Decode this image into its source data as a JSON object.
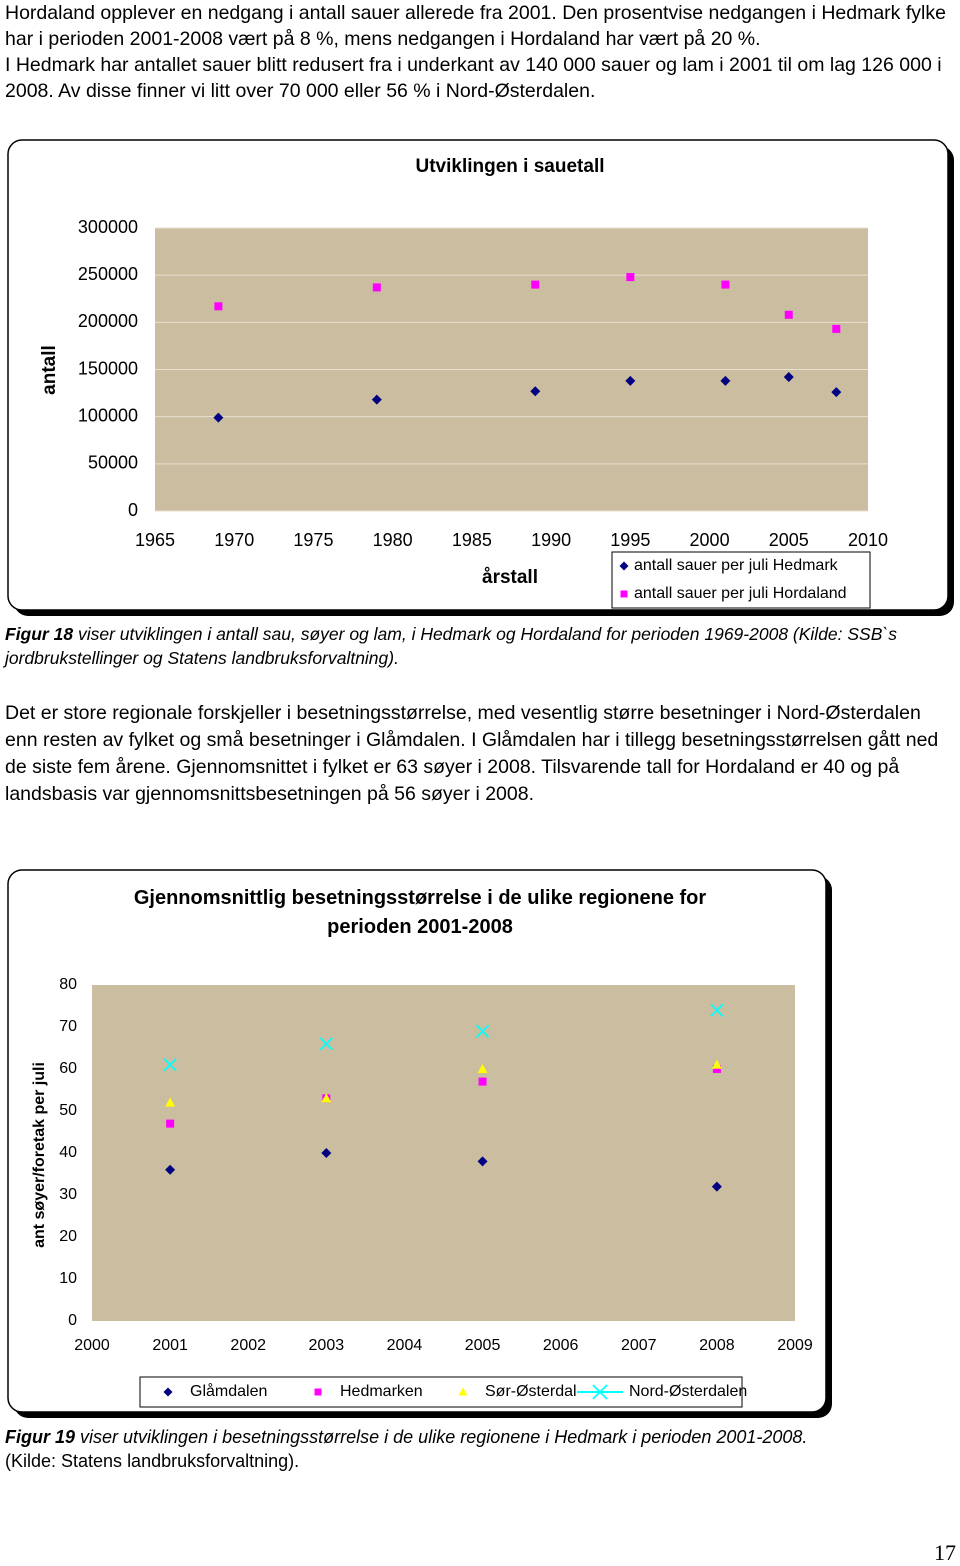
{
  "paragraphs": [
    "Hordaland opplever en nedgang i antall sauer allerede fra 2001. Den prosentvise nedgangen i Hedmark fylke har i perioden 2001-2008 vært på 8 %, mens nedgangen i Hordaland har vært på 20 %.",
    "I Hedmark har antallet sauer blitt redusert fra i underkant av 140 000 sauer og lam i 2001 til om lag 126 000 i 2008. Av disse finner vi litt over 70 000 eller 56 % i Nord-Østerdalen.",
    "Det er store regionale forskjeller i besetningsstørrelse, med vesentlig større besetninger i Nord-Østerdalen enn resten av fylket og små besetninger i Glåmdalen. I Glåmdalen har i tillegg besetningsstørrelsen gått ned de siste fem årene. Gjennomsnittet i fylket er 63 søyer i 2008. Tilsvarende tall for Hordaland er 40 og på landsbasis var gjennomsnittsbesetningen på 56 søyer i 2008."
  ],
  "captions": [
    {
      "label": "Figur 18",
      "text": "viser utviklingen i antall sau, søyer og lam, i Hedmark og Hordaland for perioden 1969-2008 (Kilde: SSB`s jordbrukstellinger og Statens landbruksforvaltning)."
    },
    {
      "label": "Figur 19",
      "text": "viser utviklingen i besetningsstørrelse i de ulike regionene i Hedmark i perioden 2001-2008.",
      "source": "(Kilde: Statens landbruksforvaltning)."
    }
  ],
  "page_number": "17",
  "chart_data": [
    {
      "type": "scatter",
      "title": "Utviklingen i sauetall",
      "xlabel": "årstall",
      "ylabel": "antall",
      "x": [
        1969,
        1979,
        1989,
        1995,
        2001,
        2005,
        2008
      ],
      "series": [
        {
          "name": "antall sauer per juli Hedmark",
          "color": "#000080",
          "marker": "diamond",
          "values": [
            99000,
            118000,
            127000,
            138000,
            138000,
            142000,
            126000
          ]
        },
        {
          "name": "antall sauer per juli Hordaland",
          "color": "#ff00ff",
          "marker": "square",
          "values": [
            217000,
            237000,
            240000,
            248000,
            240000,
            208000,
            193000
          ]
        }
      ],
      "xlim": [
        1965,
        2010
      ],
      "xticks": [
        1965,
        1970,
        1975,
        1980,
        1985,
        1990,
        1995,
        2000,
        2005,
        2010
      ],
      "ylim": [
        0,
        300000
      ],
      "yticks": [
        0,
        50000,
        100000,
        150000,
        200000,
        250000,
        300000
      ],
      "grid": true
    },
    {
      "type": "scatter",
      "title": "Gjennomsnittlig besetningsstørrelse i de ulike regionene for perioden 2001-2008",
      "ylabel": "ant søyer/foretak per juli",
      "x": [
        2001,
        2003,
        2005,
        2008
      ],
      "series": [
        {
          "name": "Glåmdalen",
          "color": "#000080",
          "marker": "diamond",
          "values": [
            36,
            40,
            38,
            32
          ]
        },
        {
          "name": "Hedmarken",
          "color": "#ff00ff",
          "marker": "square",
          "values": [
            47,
            53,
            57,
            60
          ]
        },
        {
          "name": "Sør-Østerdal",
          "color": "#ffff00",
          "marker": "triangle",
          "values": [
            52,
            53,
            60,
            61
          ]
        },
        {
          "name": "Nord-Østerdalen",
          "color": "#00ffff",
          "marker": "x",
          "values": [
            61,
            66,
            69,
            74
          ]
        }
      ],
      "xlim": [
        2000,
        2009
      ],
      "xticks": [
        2000,
        2001,
        2002,
        2003,
        2004,
        2005,
        2006,
        2007,
        2008,
        2009
      ],
      "ylim": [
        0,
        80
      ],
      "yticks": [
        0,
        10,
        20,
        30,
        40,
        50,
        60,
        70,
        80
      ],
      "grid": false
    }
  ]
}
